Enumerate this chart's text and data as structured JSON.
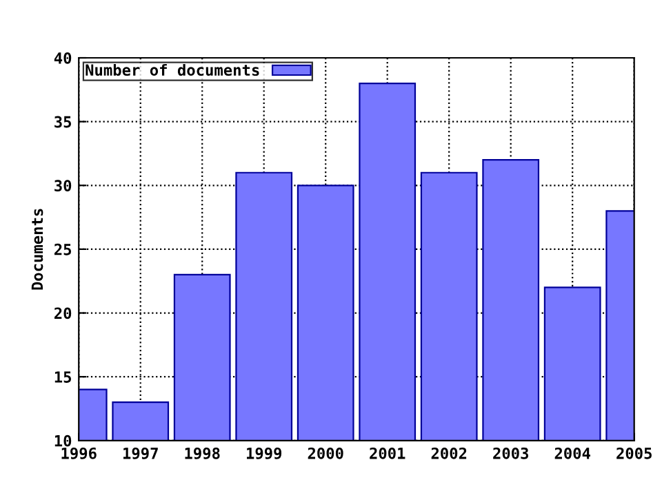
{
  "chart_data": {
    "type": "bar",
    "ylabel": "Documents",
    "x": [
      1996,
      1997,
      1998,
      1999,
      2000,
      2001,
      2002,
      2003,
      2004,
      2005
    ],
    "series": [
      {
        "name": "Number of documents",
        "color": "#7777ff",
        "values": [
          14,
          13,
          23,
          31,
          30,
          38,
          31,
          32,
          22,
          28
        ]
      }
    ],
    "xlim": [
      1996,
      2005
    ],
    "xticks": [
      1996,
      1997,
      1998,
      1999,
      2000,
      2001,
      2002,
      2003,
      2004,
      2005
    ],
    "ylim": [
      10,
      40
    ],
    "yticks": [
      10,
      15,
      20,
      25,
      30,
      35,
      40
    ],
    "grid": true,
    "legend": "top left"
  }
}
